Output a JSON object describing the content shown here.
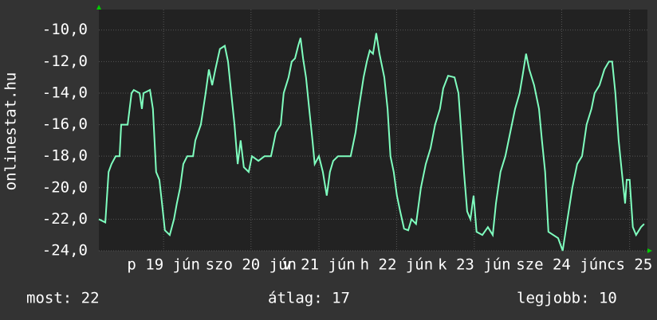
{
  "chart_data": {
    "type": "line",
    "ylabel": "onlinestat.hu",
    "color": "#7fffbf",
    "x": [
      0,
      2.0,
      3.0,
      3.9,
      5.2,
      6.4,
      6.9,
      8.9,
      10.1,
      10.8,
      12.6,
      13.3,
      13.8,
      15.8,
      16.7,
      17.7,
      18.7,
      19.5,
      20.4,
      21.9,
      23.2,
      24.1,
      25.1,
      26.1,
      27.3,
      29.1,
      29.8,
      31.5,
      33.0,
      34.0,
      35.0,
      36.0,
      37.4,
      38.9,
      39.9,
      40.9,
      41.9,
      42.9,
      43.8,
      44.8,
      46.3,
      47.3,
      49.3,
      51.2,
      53.2,
      54.7,
      56.2,
      57.1,
      58.6,
      59.6,
      60.6,
      61.6,
      62.3,
      63.1,
      64.0,
      65.0,
      66.0,
      66.7,
      68.0,
      69.2,
      70.4,
      71.4,
      72.4,
      73.9,
      75.9,
      77.8,
      79.3,
      80.3,
      81.8,
      82.8,
      83.7,
      84.7,
      85.7,
      86.7,
      88.2,
      89.2,
      90.1,
      91.1,
      92.1,
      93.1,
      94.3,
      95.6,
      96.6,
      98.0,
      99.5,
      101.0,
      102.5,
      103.9,
      105.4,
      106.4,
      107.9,
      109.9,
      111.1,
      111.8,
      112.8,
      113.8,
      114.8,
      115.8,
      116.7,
      118.5,
      120.2,
      121.7,
      122.7,
      124.1,
      125.6,
      127.1,
      128.6,
      130.0,
      131.0,
      132.0,
      133.0,
      134.5,
      136.0,
      136.9,
      137.9,
      138.9,
      140.4,
      141.9,
      143.3,
      144.8,
      146.3,
      147.8,
      149.3,
      150.7,
      152.2,
      153.2,
      154.7,
      156.2,
      157.6,
      158.6,
      159.6,
      160.6,
      161.6,
      162.6,
      163.1,
      164.0,
      165.0,
      166.0,
      167.5,
      168.5
    ],
    "values": [
      -22,
      -22.2,
      -19,
      -18.5,
      -18,
      -18,
      -16,
      -16,
      -14,
      -13.8,
      -14,
      -15,
      -14,
      -13.8,
      -15,
      -19,
      -19.5,
      -21,
      -22.7,
      -23,
      -22,
      -21,
      -20,
      -18.5,
      -18,
      -18,
      -17,
      -16,
      -14,
      -12.5,
      -13.5,
      -12.5,
      -11.2,
      -11,
      -12,
      -14,
      -16,
      -18.5,
      -17,
      -18.7,
      -19,
      -18,
      -18.3,
      -18,
      -18,
      -16.5,
      -16,
      -14,
      -13,
      -12,
      -11.8,
      -11,
      -10.5,
      -11.8,
      -13,
      -15,
      -17,
      -18.5,
      -18,
      -19,
      -20.5,
      -19,
      -18.3,
      -18,
      -18,
      -18,
      -16.5,
      -15,
      -13,
      -12,
      -11.3,
      -11.5,
      -10.2,
      -11.5,
      -13,
      -15,
      -18,
      -19,
      -20.5,
      -21.5,
      -22.6,
      -22.7,
      -22,
      -22.3,
      -20,
      -18.5,
      -17.5,
      -16,
      -15,
      -13.7,
      -12.9,
      -13,
      -14,
      -16,
      -19,
      -21.5,
      -22,
      -20.5,
      -22.8,
      -23,
      -22.5,
      -23,
      -21,
      -19,
      -18,
      -16.5,
      -15,
      -14,
      -12.8,
      -11.5,
      -12.5,
      -13.5,
      -15,
      -17,
      -19,
      -22.8,
      -23,
      -23.2,
      -24,
      -22,
      -20,
      -18.5,
      -18,
      -16,
      -15,
      -14,
      -13.5,
      -12.5,
      -12,
      -12,
      -14,
      -17,
      -19,
      -21,
      -19.5,
      -19.5,
      -22.5,
      -23,
      -22.5,
      -22.3
    ],
    "xlim": [
      0,
      169.5
    ],
    "ylim": [
      -24,
      -8.7
    ],
    "xticks": [
      {
        "value": 20,
        "label": "p 19 jún"
      },
      {
        "value": 47,
        "label": "szo 20 jún"
      },
      {
        "value": 68,
        "label": "v 21 jún"
      },
      {
        "value": 92,
        "label": "h 22 jún"
      },
      {
        "value": 116,
        "label": "k 23 jún"
      },
      {
        "value": 143,
        "label": "sze 24 jún"
      },
      {
        "value": 164,
        "label": "cs 25"
      }
    ],
    "yticks": [
      {
        "value": -24,
        "label": "-24,0"
      },
      {
        "value": -22,
        "label": "-22,0"
      },
      {
        "value": -20,
        "label": "-20,0"
      },
      {
        "value": -18,
        "label": "-18,0"
      },
      {
        "value": -16,
        "label": "-16,0"
      },
      {
        "value": -14,
        "label": "-14,0"
      },
      {
        "value": -12,
        "label": "-12,0"
      },
      {
        "value": -10,
        "label": "-10,0"
      }
    ],
    "grid": true
  },
  "footer": [
    "most: 22",
    "átlag: 17",
    "legjobb: 10"
  ]
}
